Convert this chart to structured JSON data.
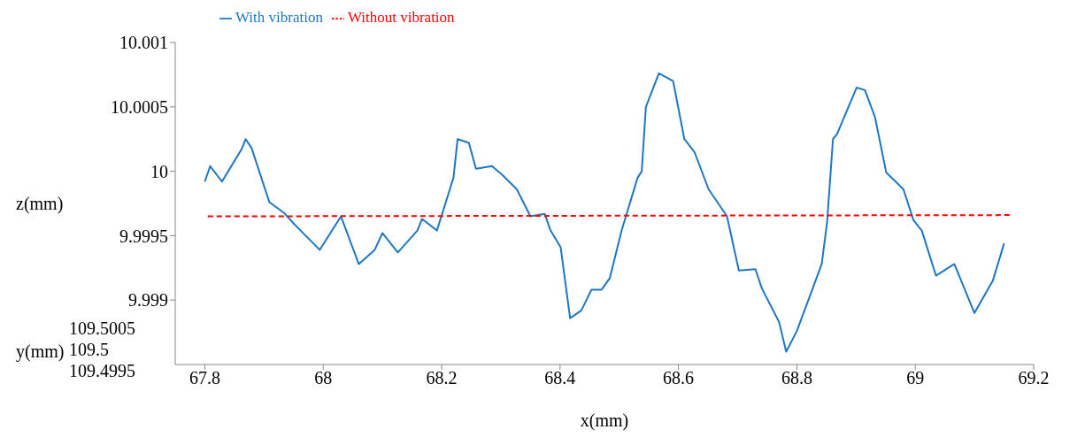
{
  "chart_data": {
    "type": "line",
    "xlabel": "x(mm)",
    "ylabel": "z(mm)",
    "xlim": [
      67.75,
      69.2
    ],
    "xticks": [
      67.8,
      68,
      68.2,
      68.4,
      68.6,
      68.8,
      69,
      69.2
    ],
    "ylim": [
      9.9985,
      10.001
    ],
    "yticks": [
      9.999,
      9.9995,
      10,
      10.0005,
      10.001
    ],
    "legend": "top",
    "annotations": [
      "y(mm)",
      "109.5005",
      "109.5",
      "109.4995"
    ],
    "series": [
      {
        "name": "With vibration",
        "color": "#1f77c4",
        "line_style": "solid",
        "x": [
          67.8,
          67.809,
          67.829,
          67.862,
          67.869,
          67.879,
          67.909,
          67.933,
          67.951,
          67.994,
          68.03,
          68.06,
          68.087,
          68.1,
          68.126,
          68.159,
          68.167,
          68.192,
          68.22,
          68.227,
          68.246,
          68.258,
          68.285,
          68.303,
          68.327,
          68.35,
          68.374,
          68.384,
          68.401,
          68.417,
          68.436,
          68.453,
          68.47,
          68.484,
          68.504,
          68.531,
          68.538,
          68.545,
          68.567,
          68.591,
          68.61,
          68.627,
          68.651,
          68.682,
          68.702,
          68.73,
          68.741,
          68.77,
          68.782,
          68.8,
          68.821,
          68.842,
          68.851,
          68.861,
          68.868,
          68.901,
          68.915,
          68.932,
          68.951,
          68.98,
          68.997,
          69.011,
          69.035,
          69.066,
          69.1,
          69.131,
          69.15
        ],
        "values": [
          9.99992,
          10.00004,
          9.99992,
          10.00017,
          10.00025,
          10.00018,
          9.99976,
          9.99968,
          9.99959,
          9.99939,
          9.99965,
          9.99928,
          9.99939,
          9.99952,
          9.99937,
          9.99954,
          9.99963,
          9.99954,
          9.99995,
          10.00025,
          10.00022,
          10.00002,
          10.00004,
          9.99997,
          9.99986,
          9.99965,
          9.99967,
          9.99954,
          9.99941,
          9.99886,
          9.99892,
          9.99908,
          9.99908,
          9.99917,
          9.99954,
          9.99995,
          10.0,
          10.0005,
          10.00076,
          10.0007,
          10.00025,
          10.00015,
          9.99986,
          9.99965,
          9.99923,
          9.99924,
          9.99909,
          9.99883,
          9.9986,
          9.99876,
          9.99902,
          9.99928,
          9.9996,
          10.00025,
          10.00029,
          10.00065,
          10.00063,
          10.00042,
          9.99999,
          9.99986,
          9.99962,
          9.99954,
          9.99919,
          9.99928,
          9.9989,
          9.99915,
          9.99944
        ]
      },
      {
        "name": "Without vibration",
        "color": "#ff0000",
        "line_style": "dashed",
        "x": [
          67.805,
          69.16
        ],
        "values": [
          9.99965,
          9.99966
        ]
      }
    ]
  }
}
